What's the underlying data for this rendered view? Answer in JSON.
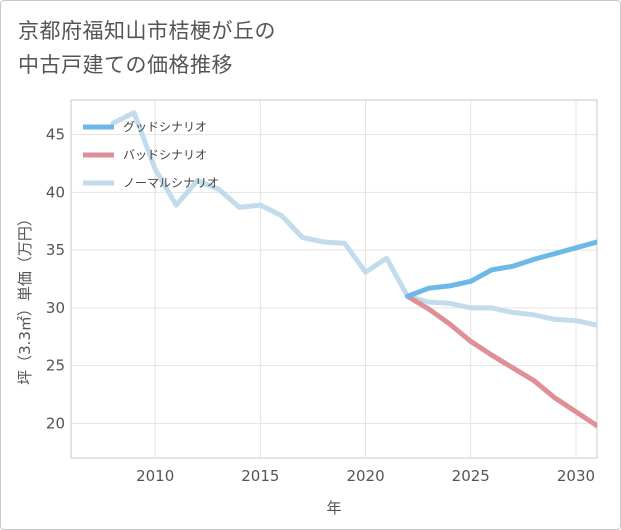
{
  "title_lines": [
    "京都府福知山市桔梗が丘の",
    "中古戸建ての価格推移"
  ],
  "chart_data": {
    "type": "line",
    "xlabel": "年",
    "ylabel": "坪（3.3㎡）単価（万円）",
    "xlim": [
      2006,
      2031
    ],
    "ylim": [
      17,
      48
    ],
    "xticks": [
      2010,
      2015,
      2020,
      2025,
      2030
    ],
    "yticks": [
      20,
      25,
      30,
      35,
      40,
      45
    ],
    "grid": true,
    "legend_position": "top-left",
    "series": [
      {
        "name": "グッドシナリオ",
        "color": "#6cb8e8",
        "x": [
          2022,
          2023,
          2024,
          2025,
          2026,
          2027,
          2028,
          2029,
          2030,
          2031
        ],
        "y": [
          31.0,
          31.7,
          31.9,
          32.3,
          33.3,
          33.6,
          34.2,
          34.7,
          35.2,
          35.7
        ]
      },
      {
        "name": "バッドシナリオ",
        "color": "#de8f97",
        "x": [
          2022,
          2023,
          2024,
          2025,
          2026,
          2027,
          2028,
          2029,
          2030,
          2031
        ],
        "y": [
          31.0,
          29.9,
          28.6,
          27.1,
          25.9,
          24.8,
          23.7,
          22.2,
          21.0,
          19.8
        ]
      },
      {
        "name": "ノーマルシナリオ",
        "color": "#c2dcec",
        "x": [
          2008,
          2009,
          2010,
          2011,
          2012,
          2013,
          2014,
          2015,
          2016,
          2017,
          2018,
          2019,
          2020,
          2021,
          2022,
          2023,
          2024,
          2025,
          2026,
          2027,
          2028,
          2029,
          2030,
          2031
        ],
        "y": [
          46.0,
          46.9,
          42.0,
          38.9,
          41.0,
          40.3,
          38.7,
          38.9,
          38.0,
          36.1,
          35.7,
          35.6,
          33.1,
          34.3,
          31.0,
          30.5,
          30.4,
          30.0,
          30.0,
          29.6,
          29.4,
          29.0,
          28.9,
          28.5
        ]
      }
    ]
  }
}
